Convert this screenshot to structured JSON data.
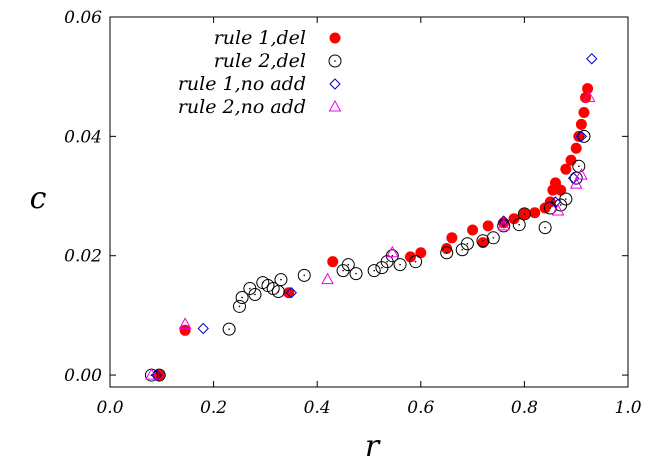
{
  "chart_data": {
    "type": "scatter",
    "xlabel": "r",
    "ylabel": "c",
    "xlim": [
      0.0,
      1.0
    ],
    "ylim": [
      -0.002,
      0.06
    ],
    "x_ticks": [
      "0.0",
      "0.2",
      "0.4",
      "0.6",
      "0.8",
      "1.0"
    ],
    "x_tick_values": [
      0.0,
      0.2,
      0.4,
      0.6,
      0.8,
      1.0
    ],
    "y_ticks": [
      "0.00",
      "0.02",
      "0.04",
      "0.06"
    ],
    "y_tick_values": [
      0.0,
      0.02,
      0.04,
      0.06
    ],
    "grid": false,
    "legend_position": "top-left",
    "series": [
      {
        "name": "rule 1,del",
        "marker": "filled-circle",
        "color": "#ff0000",
        "points": [
          [
            0.095,
            0.0
          ],
          [
            0.145,
            0.0075
          ],
          [
            0.345,
            0.0138
          ],
          [
            0.43,
            0.019
          ],
          [
            0.58,
            0.0198
          ],
          [
            0.6,
            0.0205
          ],
          [
            0.65,
            0.0212
          ],
          [
            0.66,
            0.023
          ],
          [
            0.7,
            0.0243
          ],
          [
            0.72,
            0.0222
          ],
          [
            0.73,
            0.025
          ],
          [
            0.76,
            0.0255
          ],
          [
            0.78,
            0.0262
          ],
          [
            0.8,
            0.027
          ],
          [
            0.82,
            0.0272
          ],
          [
            0.84,
            0.028
          ],
          [
            0.85,
            0.029
          ],
          [
            0.855,
            0.031
          ],
          [
            0.86,
            0.0322
          ],
          [
            0.87,
            0.031
          ],
          [
            0.88,
            0.0345
          ],
          [
            0.89,
            0.036
          ],
          [
            0.9,
            0.038
          ],
          [
            0.905,
            0.04
          ],
          [
            0.91,
            0.042
          ],
          [
            0.915,
            0.044
          ],
          [
            0.918,
            0.0465
          ],
          [
            0.922,
            0.048
          ]
        ]
      },
      {
        "name": "rule 2,del",
        "marker": "open-circle",
        "color": "#000000",
        "points": [
          [
            0.08,
            0.0
          ],
          [
            0.095,
            0.0
          ],
          [
            0.23,
            0.0077
          ],
          [
            0.25,
            0.0115
          ],
          [
            0.255,
            0.013
          ],
          [
            0.27,
            0.0145
          ],
          [
            0.28,
            0.0135
          ],
          [
            0.295,
            0.0155
          ],
          [
            0.305,
            0.015
          ],
          [
            0.315,
            0.0145
          ],
          [
            0.325,
            0.014
          ],
          [
            0.33,
            0.016
          ],
          [
            0.375,
            0.0167
          ],
          [
            0.45,
            0.0175
          ],
          [
            0.46,
            0.0185
          ],
          [
            0.475,
            0.017
          ],
          [
            0.51,
            0.0175
          ],
          [
            0.525,
            0.018
          ],
          [
            0.535,
            0.019
          ],
          [
            0.545,
            0.02
          ],
          [
            0.56,
            0.0185
          ],
          [
            0.59,
            0.019
          ],
          [
            0.65,
            0.0205
          ],
          [
            0.68,
            0.021
          ],
          [
            0.69,
            0.022
          ],
          [
            0.72,
            0.0225
          ],
          [
            0.74,
            0.023
          ],
          [
            0.76,
            0.025
          ],
          [
            0.79,
            0.0252
          ],
          [
            0.8,
            0.027
          ],
          [
            0.84,
            0.0247
          ],
          [
            0.85,
            0.028
          ],
          [
            0.87,
            0.0285
          ],
          [
            0.88,
            0.0295
          ],
          [
            0.9,
            0.033
          ],
          [
            0.905,
            0.035
          ],
          [
            0.915,
            0.04
          ]
        ]
      },
      {
        "name": "rule 1,no add",
        "marker": "open-diamond",
        "color": "#0000cc",
        "points": [
          [
            0.09,
            0.0
          ],
          [
            0.18,
            0.0078
          ],
          [
            0.35,
            0.0138
          ],
          [
            0.76,
            0.0258
          ],
          [
            0.86,
            0.029
          ],
          [
            0.895,
            0.033
          ],
          [
            0.91,
            0.04
          ],
          [
            0.93,
            0.053
          ]
        ]
      },
      {
        "name": "rule 2,no add",
        "marker": "open-triangle",
        "color": "#ee00ee",
        "points": [
          [
            0.08,
            0.0
          ],
          [
            0.145,
            0.0085
          ],
          [
            0.42,
            0.016
          ],
          [
            0.545,
            0.0205
          ],
          [
            0.76,
            0.025
          ],
          [
            0.865,
            0.0275
          ],
          [
            0.9,
            0.032
          ],
          [
            0.91,
            0.0335
          ],
          [
            0.925,
            0.0465
          ]
        ]
      }
    ]
  }
}
